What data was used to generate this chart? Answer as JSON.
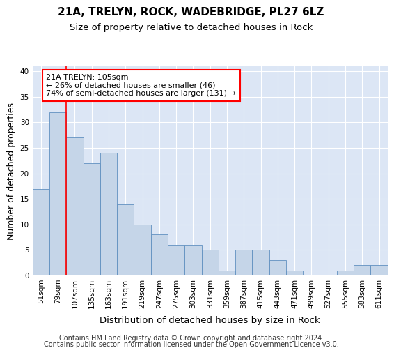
{
  "title": "21A, TRELYN, ROCK, WADEBRIDGE, PL27 6LZ",
  "subtitle": "Size of property relative to detached houses in Rock",
  "xlabel": "Distribution of detached houses by size in Rock",
  "ylabel": "Number of detached properties",
  "categories": [
    "51sqm",
    "79sqm",
    "107sqm",
    "135sqm",
    "163sqm",
    "191sqm",
    "219sqm",
    "247sqm",
    "275sqm",
    "303sqm",
    "331sqm",
    "359sqm",
    "387sqm",
    "415sqm",
    "443sqm",
    "471sqm",
    "499sqm",
    "527sqm",
    "555sqm",
    "583sqm",
    "611sqm"
  ],
  "values": [
    17,
    32,
    27,
    22,
    24,
    14,
    10,
    8,
    6,
    6,
    5,
    1,
    5,
    5,
    3,
    1,
    0,
    0,
    1,
    2,
    2
  ],
  "bar_color": "#c5d5e8",
  "bar_edge_color": "#6090c0",
  "red_line_x": 1.5,
  "annotation_text": "21A TRELYN: 105sqm\n← 26% of detached houses are smaller (46)\n74% of semi-detached houses are larger (131) →",
  "ylim": [
    0,
    41
  ],
  "yticks": [
    0,
    5,
    10,
    15,
    20,
    25,
    30,
    35,
    40
  ],
  "footer_line1": "Contains HM Land Registry data © Crown copyright and database right 2024.",
  "footer_line2": "Contains public sector information licensed under the Open Government Licence v3.0.",
  "plot_bg_color": "#dce6f5",
  "title_fontsize": 11,
  "subtitle_fontsize": 9.5,
  "ylabel_fontsize": 9,
  "xlabel_fontsize": 9.5,
  "tick_fontsize": 7.5,
  "annot_fontsize": 8,
  "footer_fontsize": 7
}
